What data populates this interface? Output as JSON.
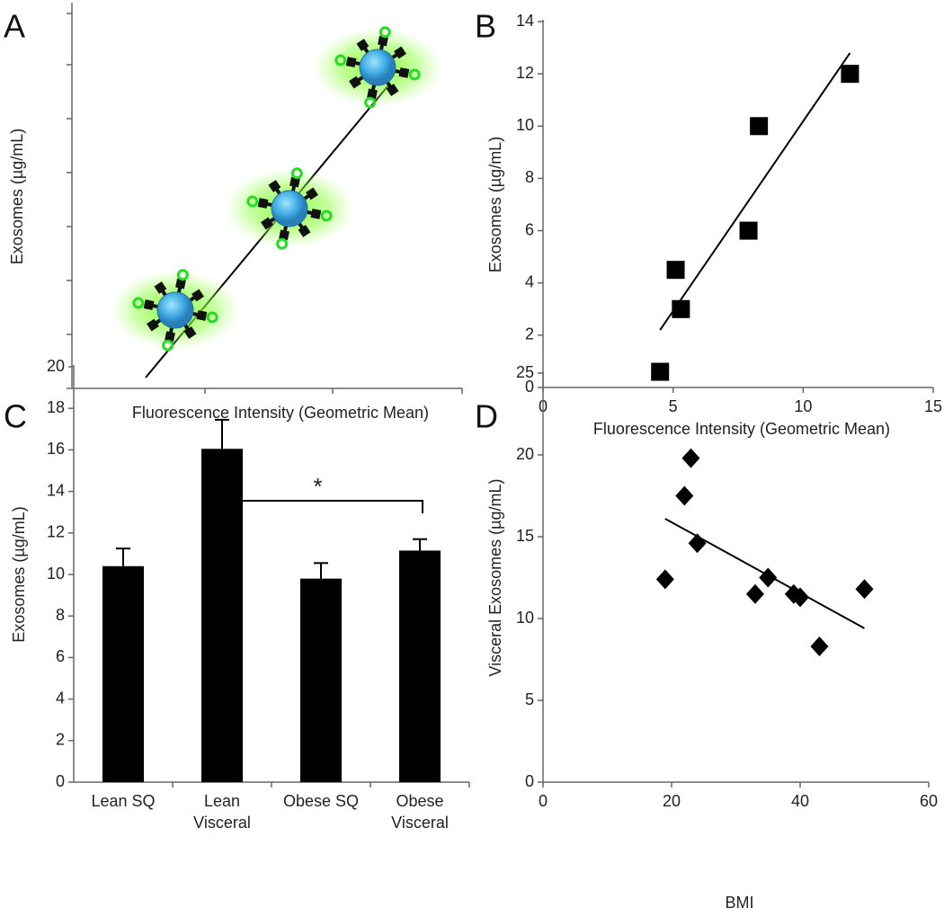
{
  "chart_data": [
    {
      "type": "schematic",
      "panel_label": "A",
      "x_label": "Fluorescence Intensity (Geometric Mean)",
      "y_label": "Exosomes (µg/mL)"
    },
    {
      "type": "scatter",
      "panel_label": "B",
      "x_label": "Fluorescence Intensity (Geometric Mean)",
      "y_label": "Exosomes (µg/mL)",
      "marker": "square",
      "color": "#000000",
      "x": [
        4.5,
        5.1,
        5.3,
        7.9,
        8.3,
        11.8
      ],
      "values": [
        0.6,
        4.5,
        3.0,
        6.0,
        10.0,
        12.0
      ],
      "trendline": {
        "x": [
          4.5,
          11.8
        ],
        "y": [
          2.2,
          12.8
        ]
      },
      "xlim": [
        0,
        15
      ],
      "xticks": [
        0,
        5,
        10,
        15
      ],
      "ylim": [
        0,
        14
      ],
      "yticks": [
        0,
        2,
        4,
        6,
        8,
        10,
        12,
        14
      ]
    },
    {
      "type": "bar",
      "panel_label": "C",
      "y_label": "Exosomes (µg/mL)",
      "color": "#000000",
      "categories": [
        [
          "Lean SQ"
        ],
        [
          "Lean",
          "Visceral"
        ],
        [
          "Obese SQ"
        ],
        [
          "Obese",
          "Visceral"
        ]
      ],
      "values": [
        10.4,
        16.05,
        9.8,
        11.15
      ],
      "errors": [
        0.85,
        1.4,
        0.75,
        0.55
      ],
      "annotation": {
        "text": "*",
        "from": 1,
        "to": 3
      },
      "ylim": [
        0,
        20
      ],
      "yticks": [
        0,
        2,
        4,
        6,
        8,
        10,
        12,
        14,
        16,
        18,
        20
      ]
    },
    {
      "type": "scatter",
      "panel_label": "D",
      "x_label": "BMI",
      "y_label": "Visceral Exosomes (µg/mL)",
      "marker": "diamond",
      "color": "#000000",
      "x": [
        19,
        22,
        23,
        24,
        33,
        35,
        39,
        40,
        43,
        50
      ],
      "values": [
        12.4,
        17.5,
        19.8,
        14.6,
        11.5,
        12.5,
        11.5,
        11.3,
        8.3,
        11.8
      ],
      "trendline": {
        "x": [
          19,
          50
        ],
        "y": [
          16.1,
          9.4
        ]
      },
      "xlim": [
        0,
        60
      ],
      "xticks": [
        0,
        20,
        40,
        60
      ],
      "ylim": [
        0,
        25
      ],
      "yticks": [
        0,
        5,
        10,
        15,
        20,
        25
      ]
    }
  ]
}
